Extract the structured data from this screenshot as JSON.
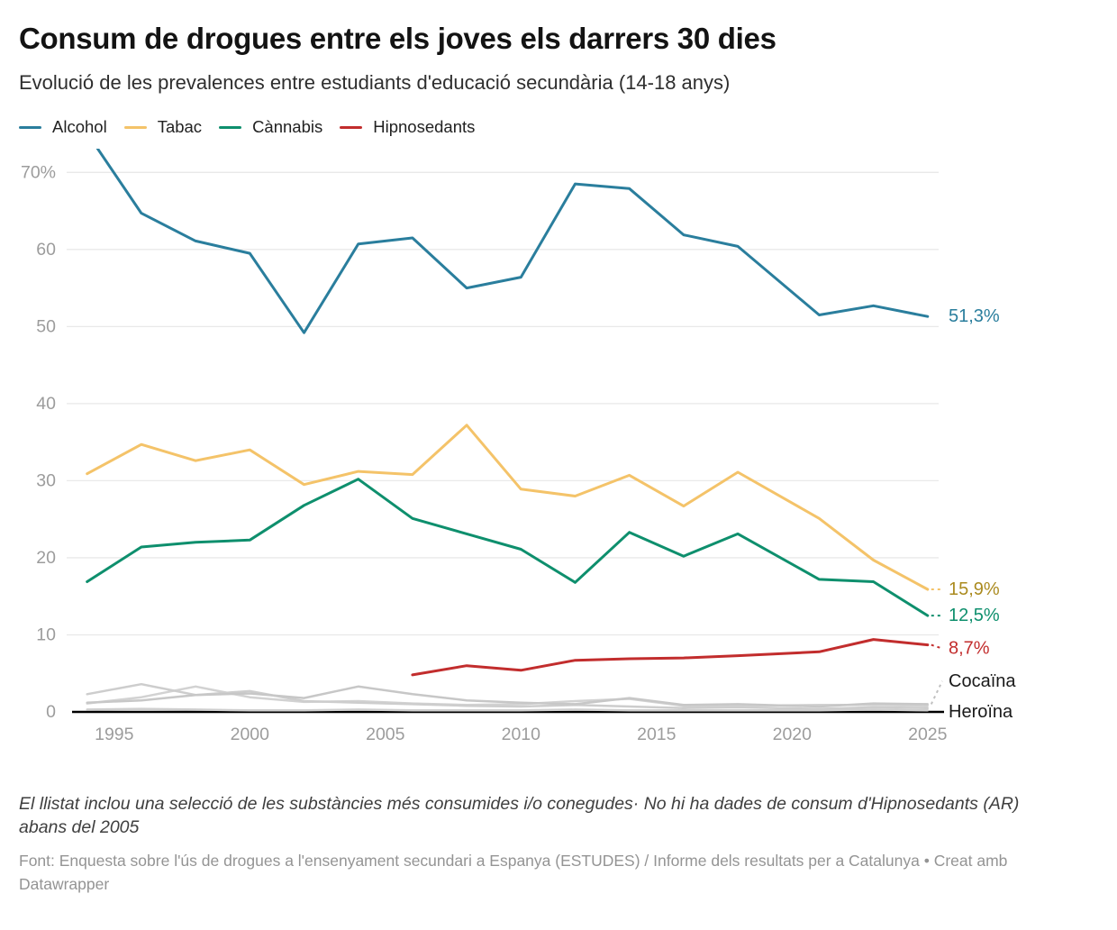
{
  "chart_data": {
    "type": "line",
    "title": "Consum de drogues entre els joves els darrers 30 dies",
    "subtitle": "Evolució de les prevalences entre estudiants d'educació secundària (14-18 anys)",
    "x": [
      1994,
      1996,
      1998,
      2000,
      2002,
      2004,
      2006,
      2008,
      2010,
      2012,
      2014,
      2016,
      2018,
      2021,
      2023,
      2025
    ],
    "x_ticks": [
      1995,
      2000,
      2005,
      2010,
      2015,
      2020,
      2025
    ],
    "y_ticks": [
      {
        "v": 0,
        "label": "0"
      },
      {
        "v": 10,
        "label": "10"
      },
      {
        "v": 20,
        "label": "20"
      },
      {
        "v": 30,
        "label": "30"
      },
      {
        "v": 40,
        "label": "40"
      },
      {
        "v": 50,
        "label": "50"
      },
      {
        "v": 60,
        "label": "60"
      },
      {
        "v": 70,
        "label": "70%"
      }
    ],
    "ylim": [
      0,
      73
    ],
    "grid": "horizontal",
    "legend_position": "top-left",
    "colors": {
      "alcohol": "#2a7e9d",
      "tabac": "#f4c369",
      "tabac_label": "#ab8b20",
      "cannabis": "#0e8f6d",
      "hipnosedants": "#c22d2d",
      "gray_lines": "#cbcbcb",
      "axis_text": "#9c9c9c",
      "gridline": "#e9e9e9",
      "axis_line": "#000000"
    },
    "series": [
      {
        "name": "Alcohol",
        "color": "#2a7e9d",
        "width": 3,
        "z": 6,
        "end_label": "51,3%",
        "end_label_color": "#2a7e9d",
        "end_label_at": 51.3,
        "connector": false,
        "values": [
          75.1,
          64.7,
          61.1,
          59.5,
          49.2,
          60.7,
          61.5,
          55.0,
          56.4,
          68.5,
          67.9,
          61.9,
          60.4,
          51.5,
          52.7,
          51.3
        ]
      },
      {
        "name": "Tabac",
        "color": "#f4c369",
        "width": 3,
        "z": 4,
        "end_label": "15,9%",
        "end_label_color": "#ab8b20",
        "end_label_at": 15.9,
        "connector": true,
        "values": [
          30.9,
          34.7,
          32.6,
          34.0,
          29.5,
          31.2,
          30.8,
          37.2,
          28.9,
          28.0,
          30.7,
          26.7,
          31.1,
          25.1,
          19.7,
          15.9
        ]
      },
      {
        "name": "Cànnabis",
        "color": "#0e8f6d",
        "width": 3,
        "z": 5,
        "end_label": "12,5%",
        "end_label_color": "#0e8f6d",
        "end_label_at": 12.5,
        "connector": true,
        "values": [
          16.9,
          21.4,
          22.0,
          22.3,
          26.8,
          30.2,
          25.1,
          23.1,
          21.1,
          16.8,
          23.3,
          20.2,
          23.1,
          17.2,
          16.9,
          12.5
        ]
      },
      {
        "name": "Hipnosedants",
        "color": "#c22d2d",
        "width": 3,
        "z": 7,
        "end_label": "8,7%",
        "end_label_color": "#c22d2d",
        "end_label_at": 8.7,
        "label_dy": 4,
        "connector": true,
        "values": [
          null,
          null,
          null,
          null,
          null,
          null,
          4.8,
          6.0,
          5.4,
          6.7,
          6.9,
          7.0,
          7.3,
          7.8,
          9.4,
          8.7
        ]
      },
      {
        "name": "Cocaïna",
        "color": "#c7c7c7",
        "width": 2.5,
        "z": 2,
        "end_label": "Cocaïna",
        "end_label_color": "#1a1a1a",
        "end_label_at": 4.0,
        "connector": true,
        "connector_color": "#c0c0c0",
        "values": [
          1.2,
          1.5,
          2.2,
          2.4,
          1.8,
          3.3,
          2.3,
          1.5,
          1.2,
          1.0,
          1.8,
          0.9,
          1.0,
          0.7,
          1.1,
          1.0
        ]
      },
      {
        "name": "Heroïna",
        "color": "#cfcfcf",
        "width": 2.5,
        "z": 3,
        "end_label": "Heroïna",
        "end_label_color": "#1a1a1a",
        "end_label_at": 0,
        "connector": false,
        "values": [
          0.3,
          0.4,
          0.3,
          0.2,
          0.2,
          0.3,
          0.2,
          0.2,
          0.2,
          0.3,
          0.2,
          0.2,
          0.2,
          0.2,
          0.3,
          0.2
        ]
      },
      {
        "name": "",
        "color": "#cdcdcd",
        "width": 2.5,
        "z": 1,
        "connector": false,
        "values": [
          2.3,
          3.6,
          2.2,
          2.7,
          1.4,
          1.2,
          1.0,
          0.8,
          0.7,
          0.9,
          0.7,
          0.5,
          0.6,
          0.4,
          0.6,
          0.5
        ]
      },
      {
        "name": "",
        "color": "#d2d2d2",
        "width": 2.5,
        "z": 0,
        "connector": false,
        "values": [
          1.1,
          1.9,
          3.3,
          1.9,
          1.3,
          1.4,
          1.1,
          0.9,
          1.0,
          1.4,
          1.7,
          0.8,
          0.8,
          0.9,
          0.9,
          0.8
        ]
      }
    ]
  },
  "footnote": "El llistat inclou una selecció de les substàncies més consumides i/o conegudes· No hi ha dades de consum d'Hipnosedants (AR) abans del 2005",
  "source": "Font: Enquesta sobre l'ús de drogues a l'ensenyament secundari a Espanya (ESTUDES) / Informe dels resultats per a Catalunya • Creat amb Datawrapper"
}
